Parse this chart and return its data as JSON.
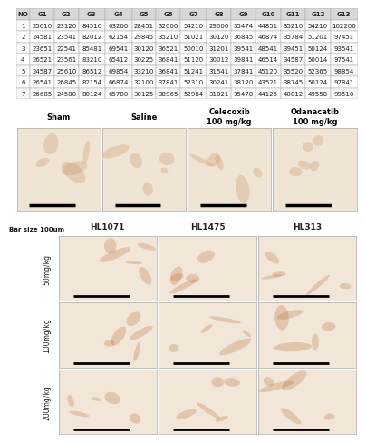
{
  "table_headers": [
    "NO",
    "G1",
    "G2",
    "G3",
    "G4",
    "G5",
    "G6",
    "G7",
    "G8",
    "G9",
    "G10",
    "G11",
    "G12",
    "G13"
  ],
  "table_data": [
    [
      1,
      25610,
      23120,
      84510,
      63200,
      28451,
      32000,
      54210,
      29000,
      35474,
      44851,
      35210,
      54210,
      102200
    ],
    [
      2,
      24581,
      23541,
      82012,
      62154,
      29845,
      35210,
      51021,
      30120,
      36845,
      46874,
      35784,
      51201,
      97451
    ],
    [
      3,
      23651,
      22541,
      85481,
      69541,
      30120,
      36521,
      50010,
      31201,
      39541,
      48541,
      39451,
      50124,
      93541
    ],
    [
      4,
      26521,
      23561,
      83210,
      65412,
      30225,
      36841,
      51120,
      30012,
      39841,
      46514,
      34587,
      50014,
      97541
    ],
    [
      5,
      24587,
      25610,
      86512,
      69854,
      33210,
      36841,
      51241,
      31541,
      37841,
      45120,
      35520,
      52365,
      98854
    ],
    [
      6,
      26541,
      26845,
      82154,
      66874,
      32100,
      37841,
      52310,
      30241,
      38120,
      43521,
      38745,
      50124,
      97841
    ],
    [
      7,
      26685,
      24580,
      80124,
      65780,
      30125,
      38965,
      52984,
      31021,
      35478,
      44125,
      40012,
      49558,
      99510
    ]
  ],
  "top_labels": [
    "Sham",
    "Saline",
    "Celecoxib\n100 mg/kg",
    "Odanacatib\n100 mg/kg"
  ],
  "side_labels": [
    "50mg/kg",
    "100mg/kg",
    "200mg/kg"
  ],
  "hl_labels": [
    "HL1071",
    "HL1475",
    "HL313"
  ],
  "bar_size_text": "Bar size 100um",
  "bg_color": "#ffffff",
  "table_header_bg": "#d8d8d8",
  "table_line_color": "#aaaaaa",
  "table_font_size": 5.0,
  "image_border_color": "#aaaaaa",
  "top_image_bg": "#f0e4d4",
  "grid_image_bg": "#f2e6d8"
}
